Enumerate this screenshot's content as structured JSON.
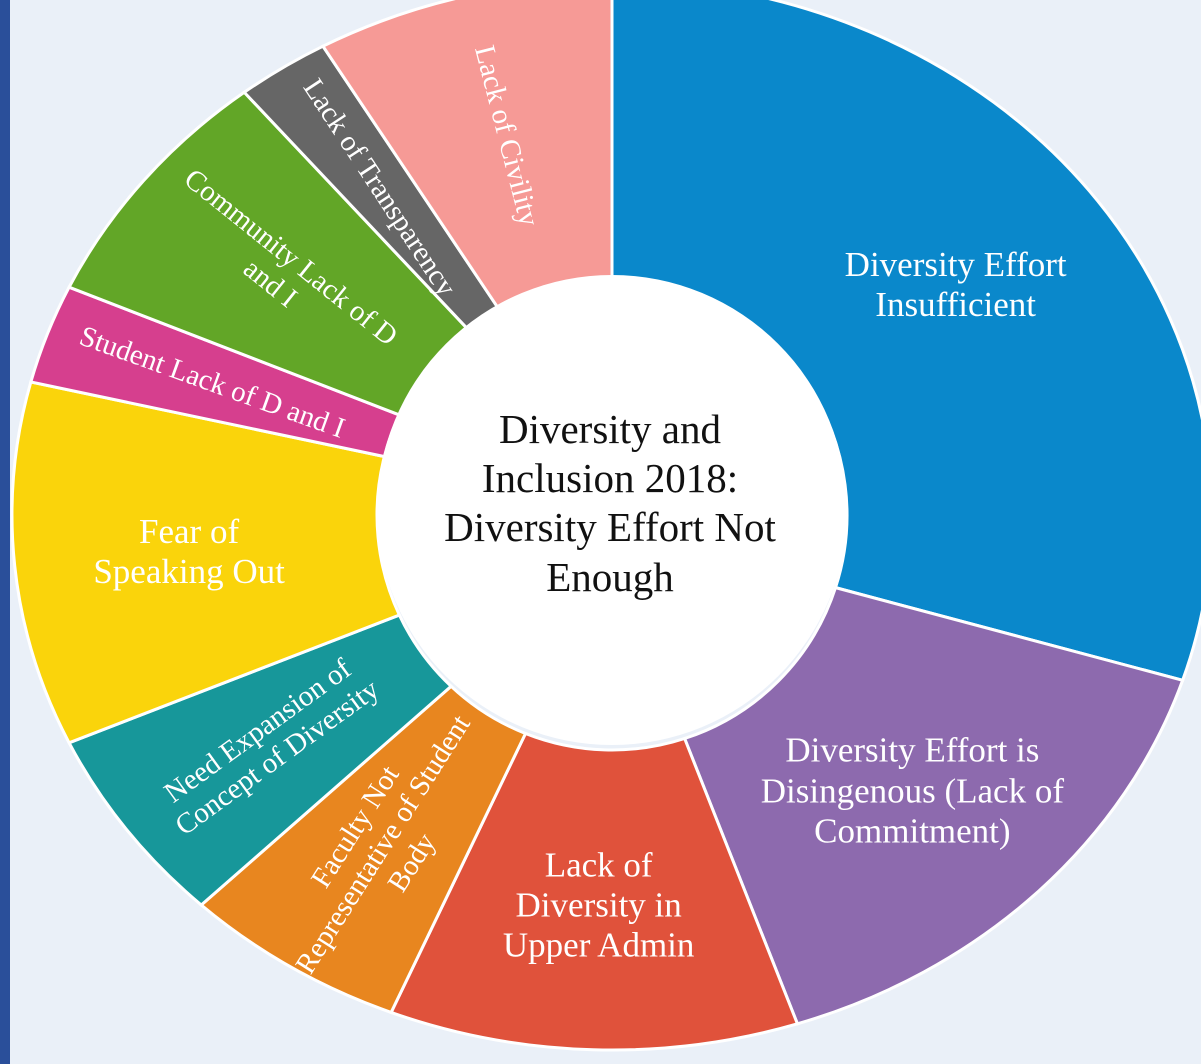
{
  "chart_data": {
    "type": "donut",
    "title": "Diversity and Inclusion 2018: Diversity Effort Not Enough",
    "categories": [
      "Diversity Effort Insufficient",
      "Diversity Effort is Disingenous (Lack of Commitment)",
      "Lack of Diversity in Upper Admin",
      "Faculty Not Representative of Student Body",
      "Need Expansion of Concept of Diversity",
      "Fear of Speaking Out",
      "Student Lack of D and I",
      "Community Lack of D and I",
      "Lack of Transparency",
      "Lack of Civility"
    ],
    "values": [
      30,
      15,
      11,
      6,
      6,
      11,
      3,
      7.5,
      2.5,
      8
    ],
    "colors": [
      "#0a88cb",
      "#8d6aae",
      "#e0523b",
      "#e8861f",
      "#17979a",
      "#fad40b",
      "#d63f8e",
      "#62a627",
      "#666666",
      "#f69a96"
    ]
  }
}
